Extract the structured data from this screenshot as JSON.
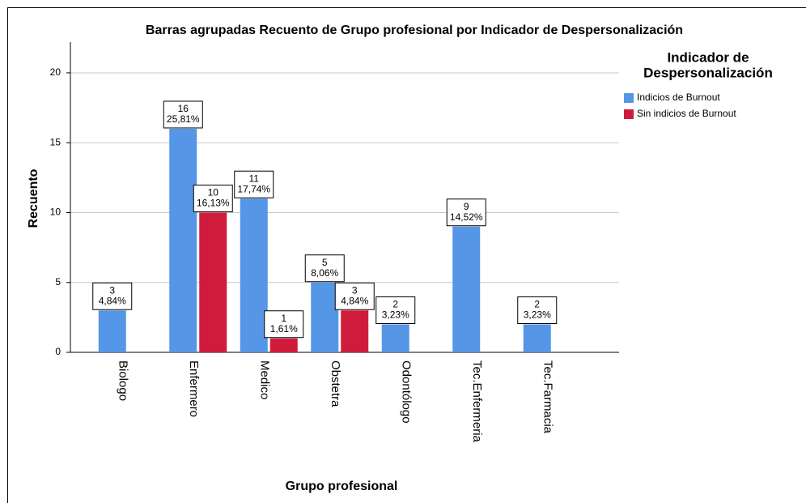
{
  "chart_data": {
    "type": "bar",
    "title": "Barras agrupadas Recuento de Grupo profesional  por Indicador de Despersonalización",
    "x_label": "Grupo profesional",
    "y_label": "Recuento",
    "legend_title": [
      "Indicador de",
      "Despersonalización"
    ],
    "legend_position": "right",
    "categories": [
      "Biologo",
      "Enfermero",
      "Medico",
      "Obstetra",
      "Odontólogo",
      "Tec.Enfermeria",
      "Tec.Farmacia"
    ],
    "series": [
      {
        "name": "Indicios de Burnout",
        "color": "#5596e6",
        "values": [
          3,
          16,
          11,
          5,
          2,
          9,
          2
        ],
        "percent_labels": [
          "4,84%",
          "25,81%",
          "17,74%",
          "8,06%",
          "3,23%",
          "14,52%",
          "3,23%"
        ]
      },
      {
        "name": "Sin indicios de Burnout",
        "color": "#d01c3c",
        "values": [
          null,
          10,
          1,
          3,
          null,
          null,
          null
        ],
        "percent_labels": [
          null,
          "16,13%",
          "1,61%",
          "4,84%",
          null,
          null,
          null
        ]
      }
    ],
    "ylim": [
      0,
      22.2
    ],
    "yticks": [
      0,
      5,
      10,
      15,
      20
    ],
    "grid": true
  }
}
